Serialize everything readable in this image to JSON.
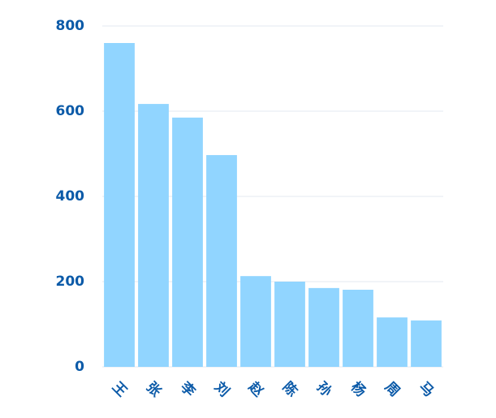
{
  "chart_data": {
    "type": "bar",
    "categories": [
      "王",
      "张",
      "李",
      "刘",
      "赵",
      "陈",
      "孙",
      "杨",
      "周",
      "马"
    ],
    "values": [
      760,
      617,
      585,
      497,
      213,
      200,
      185,
      181,
      116,
      109
    ],
    "color": "#91d5ff",
    "ylim": [
      0,
      800
    ],
    "yticks": [
      0,
      200,
      400,
      600,
      800
    ],
    "grid": true
  }
}
